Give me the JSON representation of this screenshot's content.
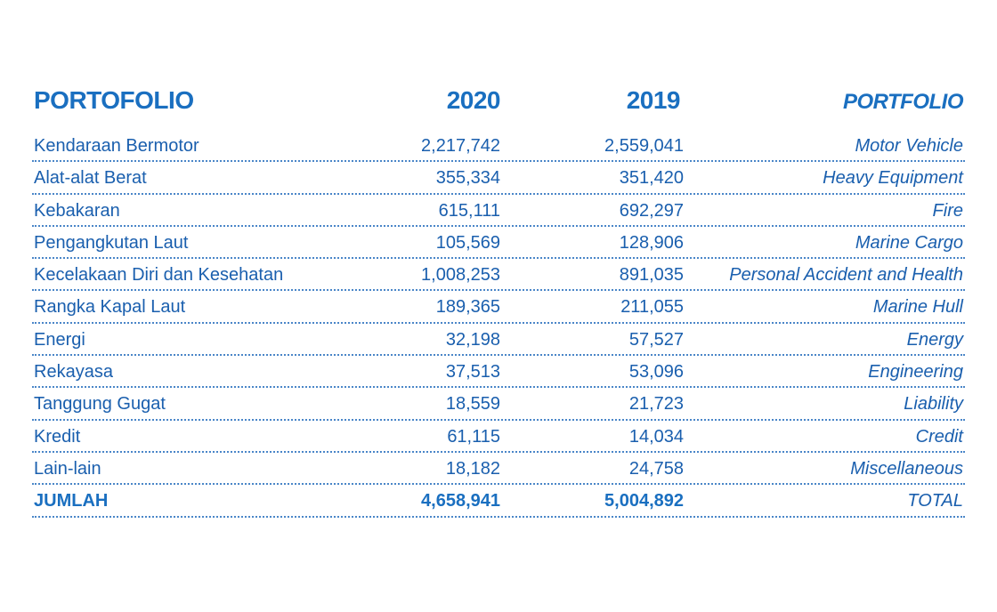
{
  "header": {
    "portofolio": "PORTOFOLIO",
    "year_2020": "2020",
    "year_2019": "2019",
    "portfolio": "PORTFOLIO"
  },
  "rows": [
    {
      "id": "Kendaraan Bermotor",
      "v2020": "2,217,742",
      "v2019": "2,559,041",
      "en": "Motor Vehicle"
    },
    {
      "id": "Alat-alat Berat",
      "v2020": "355,334",
      "v2019": "351,420",
      "en": "Heavy Equipment"
    },
    {
      "id": "Kebakaran",
      "v2020": "615,111",
      "v2019": "692,297",
      "en": "Fire"
    },
    {
      "id": "Pengangkutan Laut",
      "v2020": "105,569",
      "v2019": "128,906",
      "en": "Marine Cargo"
    },
    {
      "id": "Kecelakaan Diri dan Kesehatan",
      "v2020": "1,008,253",
      "v2019": "891,035",
      "en": "Personal Accident and Health"
    },
    {
      "id": "Rangka Kapal Laut",
      "v2020": "189,365",
      "v2019": "211,055",
      "en": "Marine Hull"
    },
    {
      "id": "Energi",
      "v2020": "32,198",
      "v2019": "57,527",
      "en": "Energy"
    },
    {
      "id": "Rekayasa",
      "v2020": "37,513",
      "v2019": "53,096",
      "en": "Engineering"
    },
    {
      "id": "Tanggung Gugat",
      "v2020": "18,559",
      "v2019": "21,723",
      "en": "Liability"
    },
    {
      "id": "Kredit",
      "v2020": "61,115",
      "v2019": "14,034",
      "en": "Credit"
    },
    {
      "id": "Lain-lain",
      "v2020": "18,182",
      "v2019": "24,758",
      "en": "Miscellaneous"
    }
  ],
  "total": {
    "id": "JUMLAH",
    "v2020": "4,658,941",
    "v2019": "5,004,892",
    "en": "TOTAL"
  },
  "colors": {
    "accent": "#1a6fc0",
    "text": "#1a5fae",
    "rule": "#4a86c8"
  }
}
